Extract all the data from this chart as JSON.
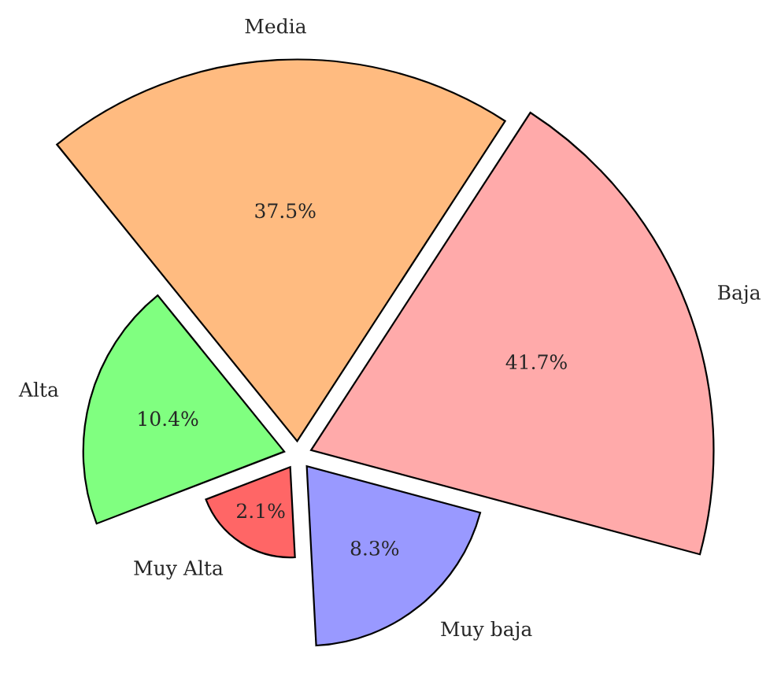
{
  "chart_data": {
    "type": "other",
    "categories": [
      "Baja",
      "Media",
      "Alta",
      "Muy Alta",
      "Muy baja"
    ],
    "values": [
      41.7,
      37.5,
      10.4,
      2.1,
      8.3
    ],
    "value_labels": [
      "41.7%",
      "37.5%",
      "10.4%",
      "2.1%",
      "8.3%"
    ],
    "colors": [
      "#ffaaaa",
      "#ffbb80",
      "#80ff80",
      "#ff6666",
      "#9999ff"
    ]
  }
}
